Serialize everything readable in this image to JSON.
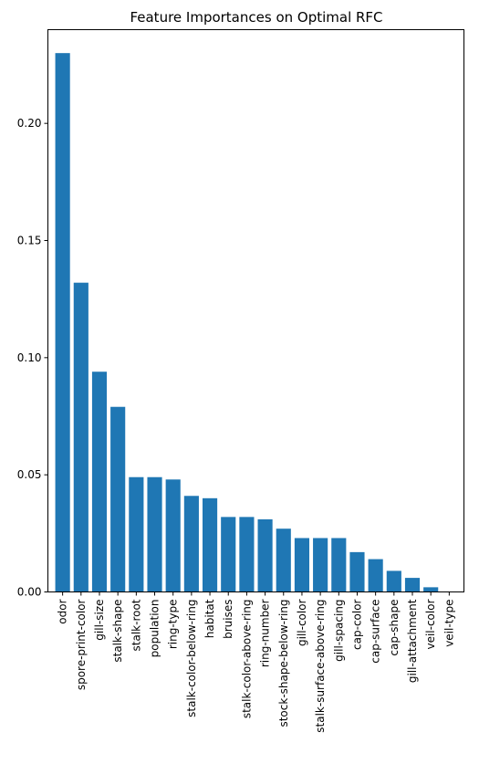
{
  "chart_data": {
    "type": "bar",
    "title": "Feature Importances on Optimal RFC",
    "xlabel": "",
    "ylabel": "",
    "ylim": [
      0,
      0.24
    ],
    "yticks": [
      0.0,
      0.05,
      0.1,
      0.15,
      0.2
    ],
    "ytick_labels": [
      "0.00",
      "0.05",
      "0.10",
      "0.15",
      "0.20"
    ],
    "grid": false,
    "bar_color": "#1f77b4",
    "categories": [
      "odor",
      "spore-print-color",
      "gill-size",
      "stalk-shape",
      "stalk-root",
      "population",
      "ring-type",
      "stalk-color-below-ring",
      "habitat",
      "bruises",
      "stalk-color-above-ring",
      "ring-number",
      "stock-shape-below-ring",
      "gill-color",
      "stalk-surface-above-ring",
      "gill-spacing",
      "cap-color",
      "cap-surface",
      "cap-shape",
      "gill-attachment",
      "veil-color",
      "veil-type"
    ],
    "values": [
      0.23,
      0.132,
      0.094,
      0.079,
      0.049,
      0.049,
      0.048,
      0.041,
      0.04,
      0.032,
      0.032,
      0.031,
      0.027,
      0.023,
      0.023,
      0.023,
      0.017,
      0.014,
      0.009,
      0.006,
      0.002,
      0.0
    ]
  }
}
